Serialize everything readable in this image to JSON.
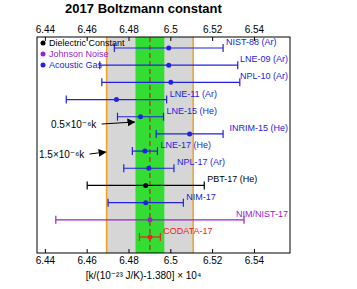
{
  "chart_data": {
    "type": "errorbar",
    "orientation": "horizontal",
    "title": "2017 Boltzmann constant",
    "x_label": "[k/(10⁻²³ J/K)-1.380] × 10⁴",
    "categories": [
      "NIST-88 (Ar)",
      "LNE-09 (Ar)",
      "NPL-10 (Ar)",
      "LNE-11 (Ar)",
      "LNE-15 (He)",
      "INRIM-15 (He)",
      "LNE-17 (He)",
      "NPL-17 (Ar)",
      "PBT-17 (He)",
      "NIM-17",
      "NIM/NIST-17",
      "CODATA-17"
    ],
    "values": [
      6.499,
      6.499,
      6.5,
      6.474,
      6.4855,
      6.509,
      6.4876,
      6.4895,
      6.488,
      6.488,
      6.49,
      6.49
    ],
    "errors": [
      0.026,
      0.033,
      0.033,
      0.024,
      0.011,
      0.016,
      0.006,
      0.012,
      0.028,
      0.018,
      0.045,
      0.005
    ],
    "colors": [
      "#2222dd",
      "#2222dd",
      "#2222dd",
      "#2222dd",
      "#2222dd",
      "#2222dd",
      "#2222dd",
      "#2222dd",
      "#000000",
      "#2222dd",
      "#9922cc",
      "#ee2222"
    ],
    "legend_entries": [
      {
        "name": "Dielectric Constant",
        "color": "#000000"
      },
      {
        "name": "Johnson Noise",
        "color": "#9922cc"
      },
      {
        "name": "Acoustic Gas",
        "color": "#2222dd"
      }
    ],
    "legend": "upper left",
    "bands": [
      {
        "label": "1.5×10⁻⁶k",
        "lo": 6.4693,
        "hi": 6.5107,
        "color": "#d6d6d6"
      },
      {
        "label": "0.5×10⁻⁶k",
        "lo": 6.4831,
        "hi": 6.4969,
        "color": "#33dd33"
      }
    ],
    "reference_line": {
      "value": 6.49,
      "color": "#cc2222"
    },
    "xlim": [
      6.436,
      6.557
    ],
    "xticks": [
      6.44,
      6.46,
      6.48,
      6.5,
      6.52,
      6.54
    ],
    "tick_labels": "x"
  }
}
